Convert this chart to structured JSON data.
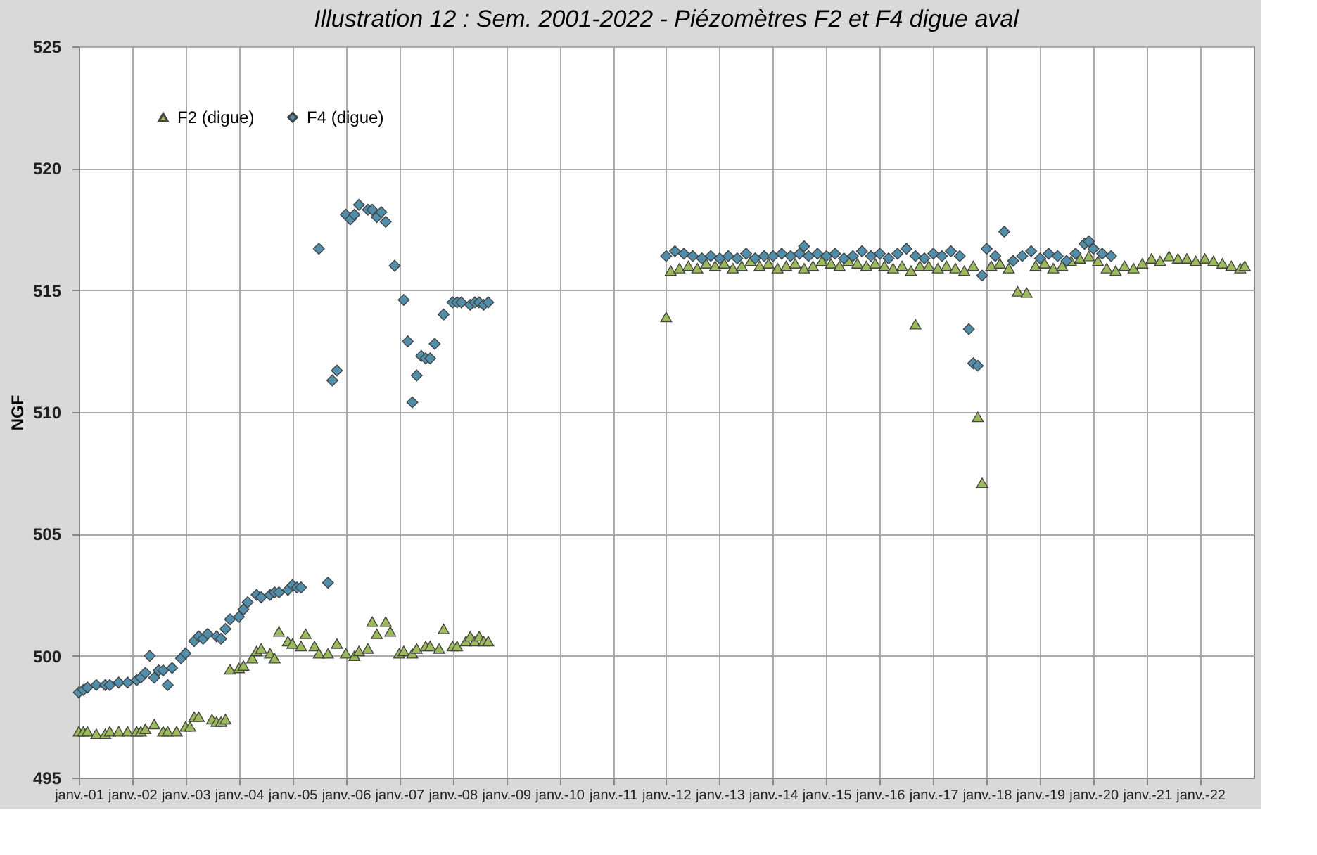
{
  "chart_data": {
    "type": "scatter",
    "title": "Illustration 12 : Sem. 2001-2022 - Piézomètres F2 et F4 digue aval",
    "ylabel": "NGF",
    "xlim": [
      "2001-01-01",
      "2023-01-01"
    ],
    "xticks": [
      {
        "value": "2001-01-01",
        "label": "janv.-01"
      },
      {
        "value": "2002-01-01",
        "label": "janv.-02"
      },
      {
        "value": "2003-01-01",
        "label": "janv.-03"
      },
      {
        "value": "2004-01-01",
        "label": "janv.-04"
      },
      {
        "value": "2005-01-01",
        "label": "janv.-05"
      },
      {
        "value": "2006-01-01",
        "label": "janv.-06"
      },
      {
        "value": "2007-01-01",
        "label": "janv.-07"
      },
      {
        "value": "2008-01-01",
        "label": "janv.-08"
      },
      {
        "value": "2009-01-01",
        "label": "janv.-09"
      },
      {
        "value": "2010-01-01",
        "label": "janv.-10"
      },
      {
        "value": "2011-01-01",
        "label": "janv.-11"
      },
      {
        "value": "2012-01-01",
        "label": "janv.-12"
      },
      {
        "value": "2013-01-01",
        "label": "janv.-13"
      },
      {
        "value": "2014-01-01",
        "label": "janv.-14"
      },
      {
        "value": "2015-01-01",
        "label": "janv.-15"
      },
      {
        "value": "2016-01-01",
        "label": "janv.-16"
      },
      {
        "value": "2017-01-01",
        "label": "janv.-17"
      },
      {
        "value": "2018-01-01",
        "label": "janv.-18"
      },
      {
        "value": "2019-01-01",
        "label": "janv.-19"
      },
      {
        "value": "2020-01-01",
        "label": "janv.-20"
      },
      {
        "value": "2021-01-01",
        "label": "janv.-21"
      },
      {
        "value": "2022-01-01",
        "label": "janv.-22"
      }
    ],
    "ylim": [
      495,
      525
    ],
    "yticks": [
      495,
      500,
      505,
      510,
      515,
      520,
      525
    ],
    "grid": true,
    "legend": "top left",
    "series": [
      {
        "name": "F2 (digue)",
        "color": "#9bbb59",
        "marker": "triangle",
        "x": [
          "2001-01",
          "2001-02",
          "2001-03",
          "2001-05",
          "2001-07",
          "2001-08",
          "2001-10",
          "2001-12",
          "2002-02",
          "2002-03",
          "2002-04",
          "2002-06",
          "2002-08",
          "2002-09",
          "2002-11",
          "2003-01",
          "2003-02",
          "2003-03",
          "2003-04",
          "2003-07",
          "2003-08",
          "2003-09",
          "2003-10",
          "2003-11",
          "2004-01",
          "2004-02",
          "2004-04",
          "2004-05",
          "2004-06",
          "2004-08",
          "2004-09",
          "2004-10",
          "2004-12",
          "2005-01",
          "2005-03",
          "2005-04",
          "2005-06",
          "2005-07",
          "2005-09",
          "2005-11",
          "2006-01",
          "2006-03",
          "2006-04",
          "2006-06",
          "2006-07",
          "2006-08",
          "2006-10",
          "2006-11",
          "2007-01",
          "2007-02",
          "2007-04",
          "2007-05",
          "2007-07",
          "2007-08",
          "2007-10",
          "2007-11",
          "2008-01",
          "2008-02",
          "2008-04",
          "2008-05",
          "2008-06",
          "2008-07",
          "2008-08",
          "2008-09",
          "2012-01",
          "2012-02",
          "2012-04",
          "2012-06",
          "2012-08",
          "2012-10",
          "2012-12",
          "2013-02",
          "2013-04",
          "2013-06",
          "2013-08",
          "2013-10",
          "2013-12",
          "2014-02",
          "2014-04",
          "2014-06",
          "2014-08",
          "2014-10",
          "2014-12",
          "2015-02",
          "2015-04",
          "2015-06",
          "2015-08",
          "2015-10",
          "2015-12",
          "2016-02",
          "2016-04",
          "2016-06",
          "2016-08",
          "2016-09",
          "2016-10",
          "2016-12",
          "2017-02",
          "2017-04",
          "2017-06",
          "2017-08",
          "2017-10",
          "2017-11",
          "2017-12",
          "2018-02",
          "2018-04",
          "2018-06",
          "2018-08",
          "2018-10",
          "2018-12",
          "2019-02",
          "2019-04",
          "2019-06",
          "2019-08",
          "2019-10",
          "2019-12",
          "2020-02",
          "2020-04",
          "2020-06",
          "2020-08",
          "2020-10",
          "2020-12",
          "2021-02",
          "2021-04",
          "2021-06",
          "2021-08",
          "2021-10",
          "2021-12",
          "2022-02",
          "2022-04",
          "2022-06",
          "2022-08",
          "2022-10",
          "2022-11"
        ],
        "values": [
          496.9,
          496.9,
          496.9,
          496.8,
          496.8,
          496.9,
          496.9,
          496.9,
          496.9,
          496.9,
          497.0,
          497.2,
          496.9,
          496.9,
          496.9,
          497.1,
          497.1,
          497.5,
          497.5,
          497.4,
          497.3,
          497.3,
          497.4,
          499.45,
          499.5,
          499.6,
          499.9,
          500.2,
          500.3,
          500.1,
          499.9,
          501.0,
          500.6,
          500.5,
          500.4,
          500.9,
          500.4,
          500.1,
          500.1,
          500.5,
          500.1,
          500.0,
          500.2,
          500.3,
          501.4,
          500.9,
          501.4,
          501.0,
          500.1,
          500.2,
          500.1,
          500.3,
          500.4,
          500.4,
          500.3,
          501.1,
          500.4,
          500.4,
          500.6,
          500.8,
          500.6,
          500.8,
          500.6,
          500.6,
          513.9,
          515.8,
          515.9,
          516.0,
          515.9,
          516.1,
          516.0,
          516.1,
          515.9,
          516.0,
          516.2,
          516.0,
          516.1,
          515.9,
          516.0,
          516.1,
          515.9,
          516.0,
          516.2,
          516.1,
          516.0,
          516.2,
          516.1,
          516.0,
          516.1,
          516.0,
          515.9,
          516.0,
          515.8,
          513.6,
          516.0,
          516.0,
          515.9,
          516.0,
          515.9,
          515.8,
          516.0,
          509.8,
          507.1,
          516.0,
          516.1,
          515.9,
          514.95,
          514.9,
          516.0,
          516.1,
          515.9,
          516.0,
          516.2,
          516.3,
          516.4,
          516.2,
          515.9,
          515.8,
          516.0,
          515.9,
          516.1,
          516.3,
          516.2,
          516.4,
          516.3,
          516.3,
          516.2,
          516.3,
          516.2,
          516.1,
          516.0,
          515.9,
          516.0
        ]
      },
      {
        "name": "F4 (digue)",
        "color": "#4f8fab",
        "marker": "diamond",
        "x": [
          "2001-01",
          "2001-02",
          "2001-03",
          "2001-05",
          "2001-07",
          "2001-08",
          "2001-10",
          "2001-12",
          "2002-02",
          "2002-03",
          "2002-04",
          "2002-05",
          "2002-06",
          "2002-07",
          "2002-08",
          "2002-09",
          "2002-10",
          "2002-12",
          "2003-01",
          "2003-03",
          "2003-04",
          "2003-05",
          "2003-06",
          "2003-08",
          "2003-09",
          "2003-10",
          "2003-11",
          "2004-01",
          "2004-02",
          "2004-03",
          "2004-05",
          "2004-06",
          "2004-08",
          "2004-09",
          "2004-10",
          "2004-12",
          "2005-01",
          "2005-02",
          "2005-03",
          "2005-07",
          "2005-09",
          "2005-10",
          "2005-11",
          "2006-01",
          "2006-02",
          "2006-03",
          "2006-04",
          "2006-06",
          "2006-07",
          "2006-08",
          "2006-09",
          "2006-10",
          "2006-12",
          "2007-02",
          "2007-03",
          "2007-04",
          "2007-05",
          "2007-06",
          "2007-07",
          "2007-08",
          "2007-09",
          "2007-11",
          "2008-01",
          "2008-02",
          "2008-03",
          "2008-05",
          "2008-06",
          "2008-07",
          "2008-08",
          "2008-09",
          "2012-01",
          "2012-03",
          "2012-05",
          "2012-07",
          "2012-09",
          "2012-11",
          "2013-01",
          "2013-03",
          "2013-05",
          "2013-07",
          "2013-09",
          "2013-11",
          "2014-01",
          "2014-03",
          "2014-05",
          "2014-07",
          "2014-08",
          "2014-09",
          "2014-11",
          "2015-01",
          "2015-03",
          "2015-05",
          "2015-07",
          "2015-09",
          "2015-11",
          "2016-01",
          "2016-03",
          "2016-05",
          "2016-07",
          "2016-09",
          "2016-11",
          "2017-01",
          "2017-03",
          "2017-05",
          "2017-07",
          "2017-09",
          "2017-10",
          "2017-11",
          "2017-12",
          "2018-01",
          "2018-03",
          "2018-05",
          "2018-07",
          "2018-09",
          "2018-11",
          "2019-01",
          "2019-03",
          "2019-05",
          "2019-07",
          "2019-09",
          "2019-11",
          "2019-12",
          "2020-01",
          "2020-03",
          "2020-05"
        ],
        "values": [
          498.5,
          498.6,
          498.7,
          498.8,
          498.8,
          498.8,
          498.9,
          498.9,
          499.0,
          499.1,
          499.3,
          500.0,
          499.1,
          499.4,
          499.4,
          498.8,
          499.5,
          499.9,
          500.1,
          500.6,
          500.8,
          500.7,
          500.9,
          500.8,
          500.7,
          501.1,
          501.5,
          501.6,
          501.9,
          502.2,
          502.5,
          502.4,
          502.5,
          502.6,
          502.6,
          502.7,
          502.9,
          502.8,
          502.8,
          516.7,
          503.0,
          511.3,
          511.7,
          518.1,
          517.9,
          518.1,
          518.5,
          518.3,
          518.3,
          518.0,
          518.2,
          517.8,
          516.0,
          514.6,
          512.9,
          510.4,
          511.5,
          512.3,
          512.2,
          512.2,
          512.8,
          514.0,
          514.5,
          514.5,
          514.5,
          514.4,
          514.5,
          514.5,
          514.4,
          514.5,
          516.4,
          516.6,
          516.5,
          516.4,
          516.3,
          516.4,
          516.3,
          516.4,
          516.3,
          516.5,
          516.3,
          516.4,
          516.4,
          516.5,
          516.4,
          516.5,
          516.8,
          516.4,
          516.5,
          516.4,
          516.5,
          516.3,
          516.4,
          516.6,
          516.4,
          516.5,
          516.3,
          516.5,
          516.7,
          516.4,
          516.3,
          516.5,
          516.4,
          516.6,
          516.4,
          513.4,
          512.0,
          511.9,
          515.6,
          516.7,
          516.4,
          517.4,
          516.2,
          516.4,
          516.6,
          516.3,
          516.5,
          516.4,
          516.2,
          516.5,
          516.9,
          517.0,
          516.7,
          516.5,
          516.4
        ]
      }
    ]
  }
}
